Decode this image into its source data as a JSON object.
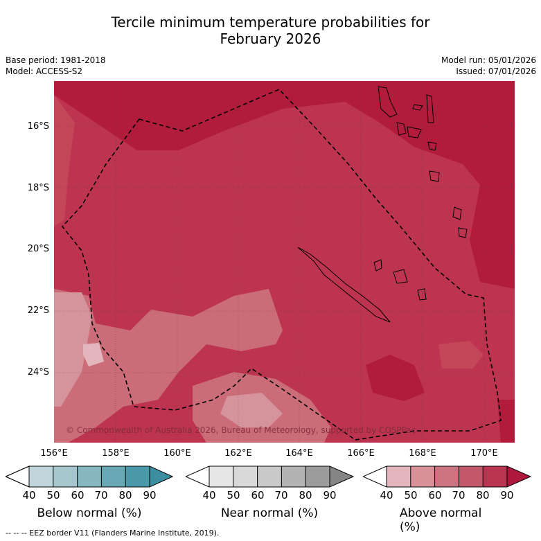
{
  "title_line1": "Tercile minimum temperature probabilities for",
  "title_line2": "February 2026",
  "base_period": "Base period: 1981-2018",
  "model": "Model: ACCESS-S2",
  "model_run": "Model run: 05/01/2026",
  "issued": "Issued: 07/01/2026",
  "copyright": "© Commonwealth of Australia 2026, Bureau of Meteorology, supported by COSPPac",
  "lat_labels": [
    "16°S",
    "18°S",
    "20°S",
    "22°S",
    "24°S"
  ],
  "lon_labels": [
    "156°E",
    "158°E",
    "160°E",
    "162°E",
    "164°E",
    "166°E",
    "168°E",
    "170°E"
  ],
  "colorbar_ticks": [
    "40",
    "50",
    "60",
    "70",
    "80",
    "90"
  ],
  "colorbars": [
    {
      "label": "Below normal (%)",
      "colors": [
        "#c0d6dc",
        "#a3c7cc",
        "#86b7c0",
        "#68a8b4",
        "#4b9aa9",
        "#3c8fa0"
      ]
    },
    {
      "label": "Near normal (%)",
      "colors": [
        "#e6e6e6",
        "#d9d9d9",
        "#c9c9c9",
        "#b3b3b3",
        "#9c9c9c",
        "#858585"
      ]
    },
    {
      "label": "Above normal (%)",
      "colors": [
        "#e2b6bc",
        "#d89199",
        "#cd7381",
        "#c2566a",
        "#b93451",
        "#ad183c"
      ]
    }
  ],
  "legend": "--  --  -- EEZ border V11 (Flanders Marine Institute, 2019).",
  "palette": {
    "c90": "#b11c3c",
    "c80": "#bd3450",
    "c70": "#cb6d78",
    "c60": "#d5939b"
  }
}
